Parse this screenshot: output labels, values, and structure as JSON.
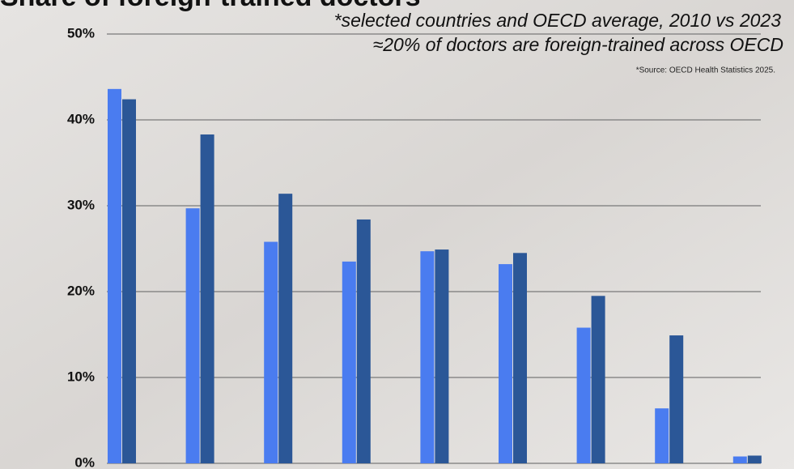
{
  "chart_data": {
    "type": "bar",
    "title": "Share of foreign-trained doctors",
    "subtitle": [
      "*selected countries and OECD average, 2010 vs 2023",
      "≈20% of doctors are foreign-trained across OECD"
    ],
    "source": "*Source: OECD Health Statistics 2025.",
    "categories": [
      null,
      null,
      null,
      null,
      null,
      null,
      null,
      null,
      null
    ],
    "series": [
      {
        "color": "#4a7cf0",
        "values": [
          43.6,
          29.7,
          25.8,
          23.5,
          24.7,
          23.2,
          15.8,
          6.4,
          0.8
        ]
      },
      {
        "color": "#2b5797",
        "values": [
          42.4,
          38.3,
          31.4,
          28.4,
          24.9,
          24.5,
          19.5,
          14.9,
          0.9
        ]
      }
    ],
    "ylim": [
      0,
      50
    ],
    "yticks": [
      {
        "value": 0,
        "label": "0%"
      },
      {
        "value": 10,
        "label": "10%"
      },
      {
        "value": 20,
        "label": "20%"
      },
      {
        "value": 30,
        "label": "30%"
      },
      {
        "value": 40,
        "label": "40%"
      },
      {
        "value": 50,
        "label": "50%"
      }
    ],
    "grid": true
  }
}
